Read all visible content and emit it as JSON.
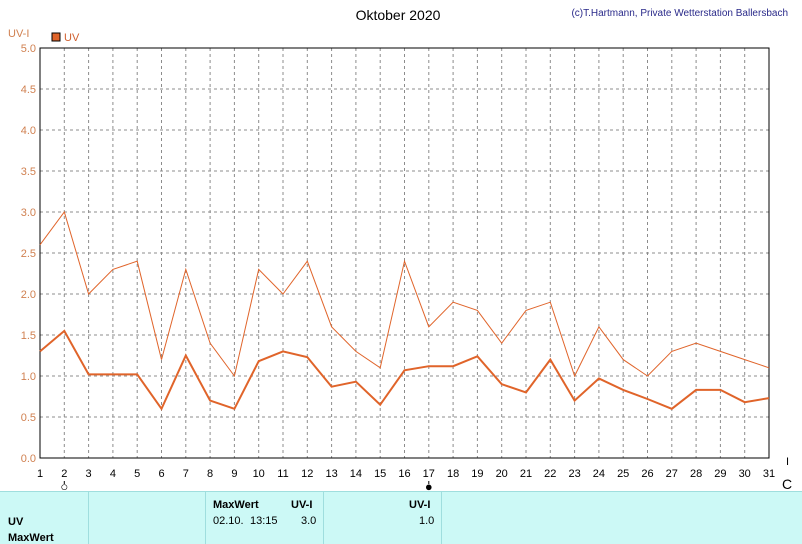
{
  "title": "Oktober 2020",
  "credit": "(c)T.Hartmann, Private Wetterstation Ballersbach",
  "colors": {
    "line": "#e0642a",
    "grid": "#8c8c8c",
    "axis_text": "#d08050",
    "summary_bg": "#ccf9f6"
  },
  "chart_data": {
    "type": "line",
    "ylabel": "UV-I",
    "ylim": [
      0,
      5
    ],
    "yticks": [
      "0.0",
      "0.5",
      "1.0",
      "1.5",
      "2.0",
      "2.5",
      "3.0",
      "3.5",
      "4.0",
      "4.5",
      "5.0"
    ],
    "x": [
      1,
      2,
      3,
      4,
      5,
      6,
      7,
      8,
      9,
      10,
      11,
      12,
      13,
      14,
      15,
      16,
      17,
      18,
      19,
      20,
      21,
      22,
      23,
      24,
      25,
      26,
      27,
      28,
      29,
      30,
      31
    ],
    "legend": [
      "UV"
    ],
    "legend_position": "top-left",
    "grid": true,
    "series": [
      {
        "name": "UV",
        "style": "thick",
        "values": [
          1.3,
          1.55,
          1.02,
          1.02,
          1.02,
          0.6,
          1.25,
          0.7,
          0.6,
          1.18,
          1.3,
          1.23,
          0.87,
          0.93,
          0.65,
          1.07,
          1.12,
          1.12,
          1.24,
          0.9,
          0.8,
          1.2,
          0.7,
          0.97,
          0.83,
          0.72,
          0.6,
          0.83,
          0.83,
          0.68,
          0.73
        ]
      },
      {
        "style": "thin",
        "values": [
          2.6,
          3.0,
          2.0,
          2.3,
          2.4,
          1.2,
          2.3,
          1.4,
          1.0,
          2.3,
          2.0,
          2.4,
          1.6,
          1.3,
          1.1,
          2.4,
          1.6,
          1.9,
          1.8,
          1.4,
          1.8,
          1.9,
          1.0,
          1.6,
          1.2,
          1.0,
          1.3,
          1.4,
          1.3,
          1.2,
          1.1
        ]
      }
    ],
    "moon_phases": [
      {
        "day": 2,
        "symbol": "○"
      },
      {
        "day": 17,
        "symbol": "●"
      }
    ]
  },
  "edge_marks": {
    "right_top": "I",
    "right_bottom": "C"
  },
  "summary": {
    "row1_label": "UV",
    "row2_label": "MaxWert",
    "header_maxwert": "MaxWert",
    "header_uvi": "UV-I",
    "max_date": "02.10.",
    "max_time": "13:15",
    "max_value": "3.0",
    "header_uvi2": "UV-I",
    "value2": "1.0"
  }
}
